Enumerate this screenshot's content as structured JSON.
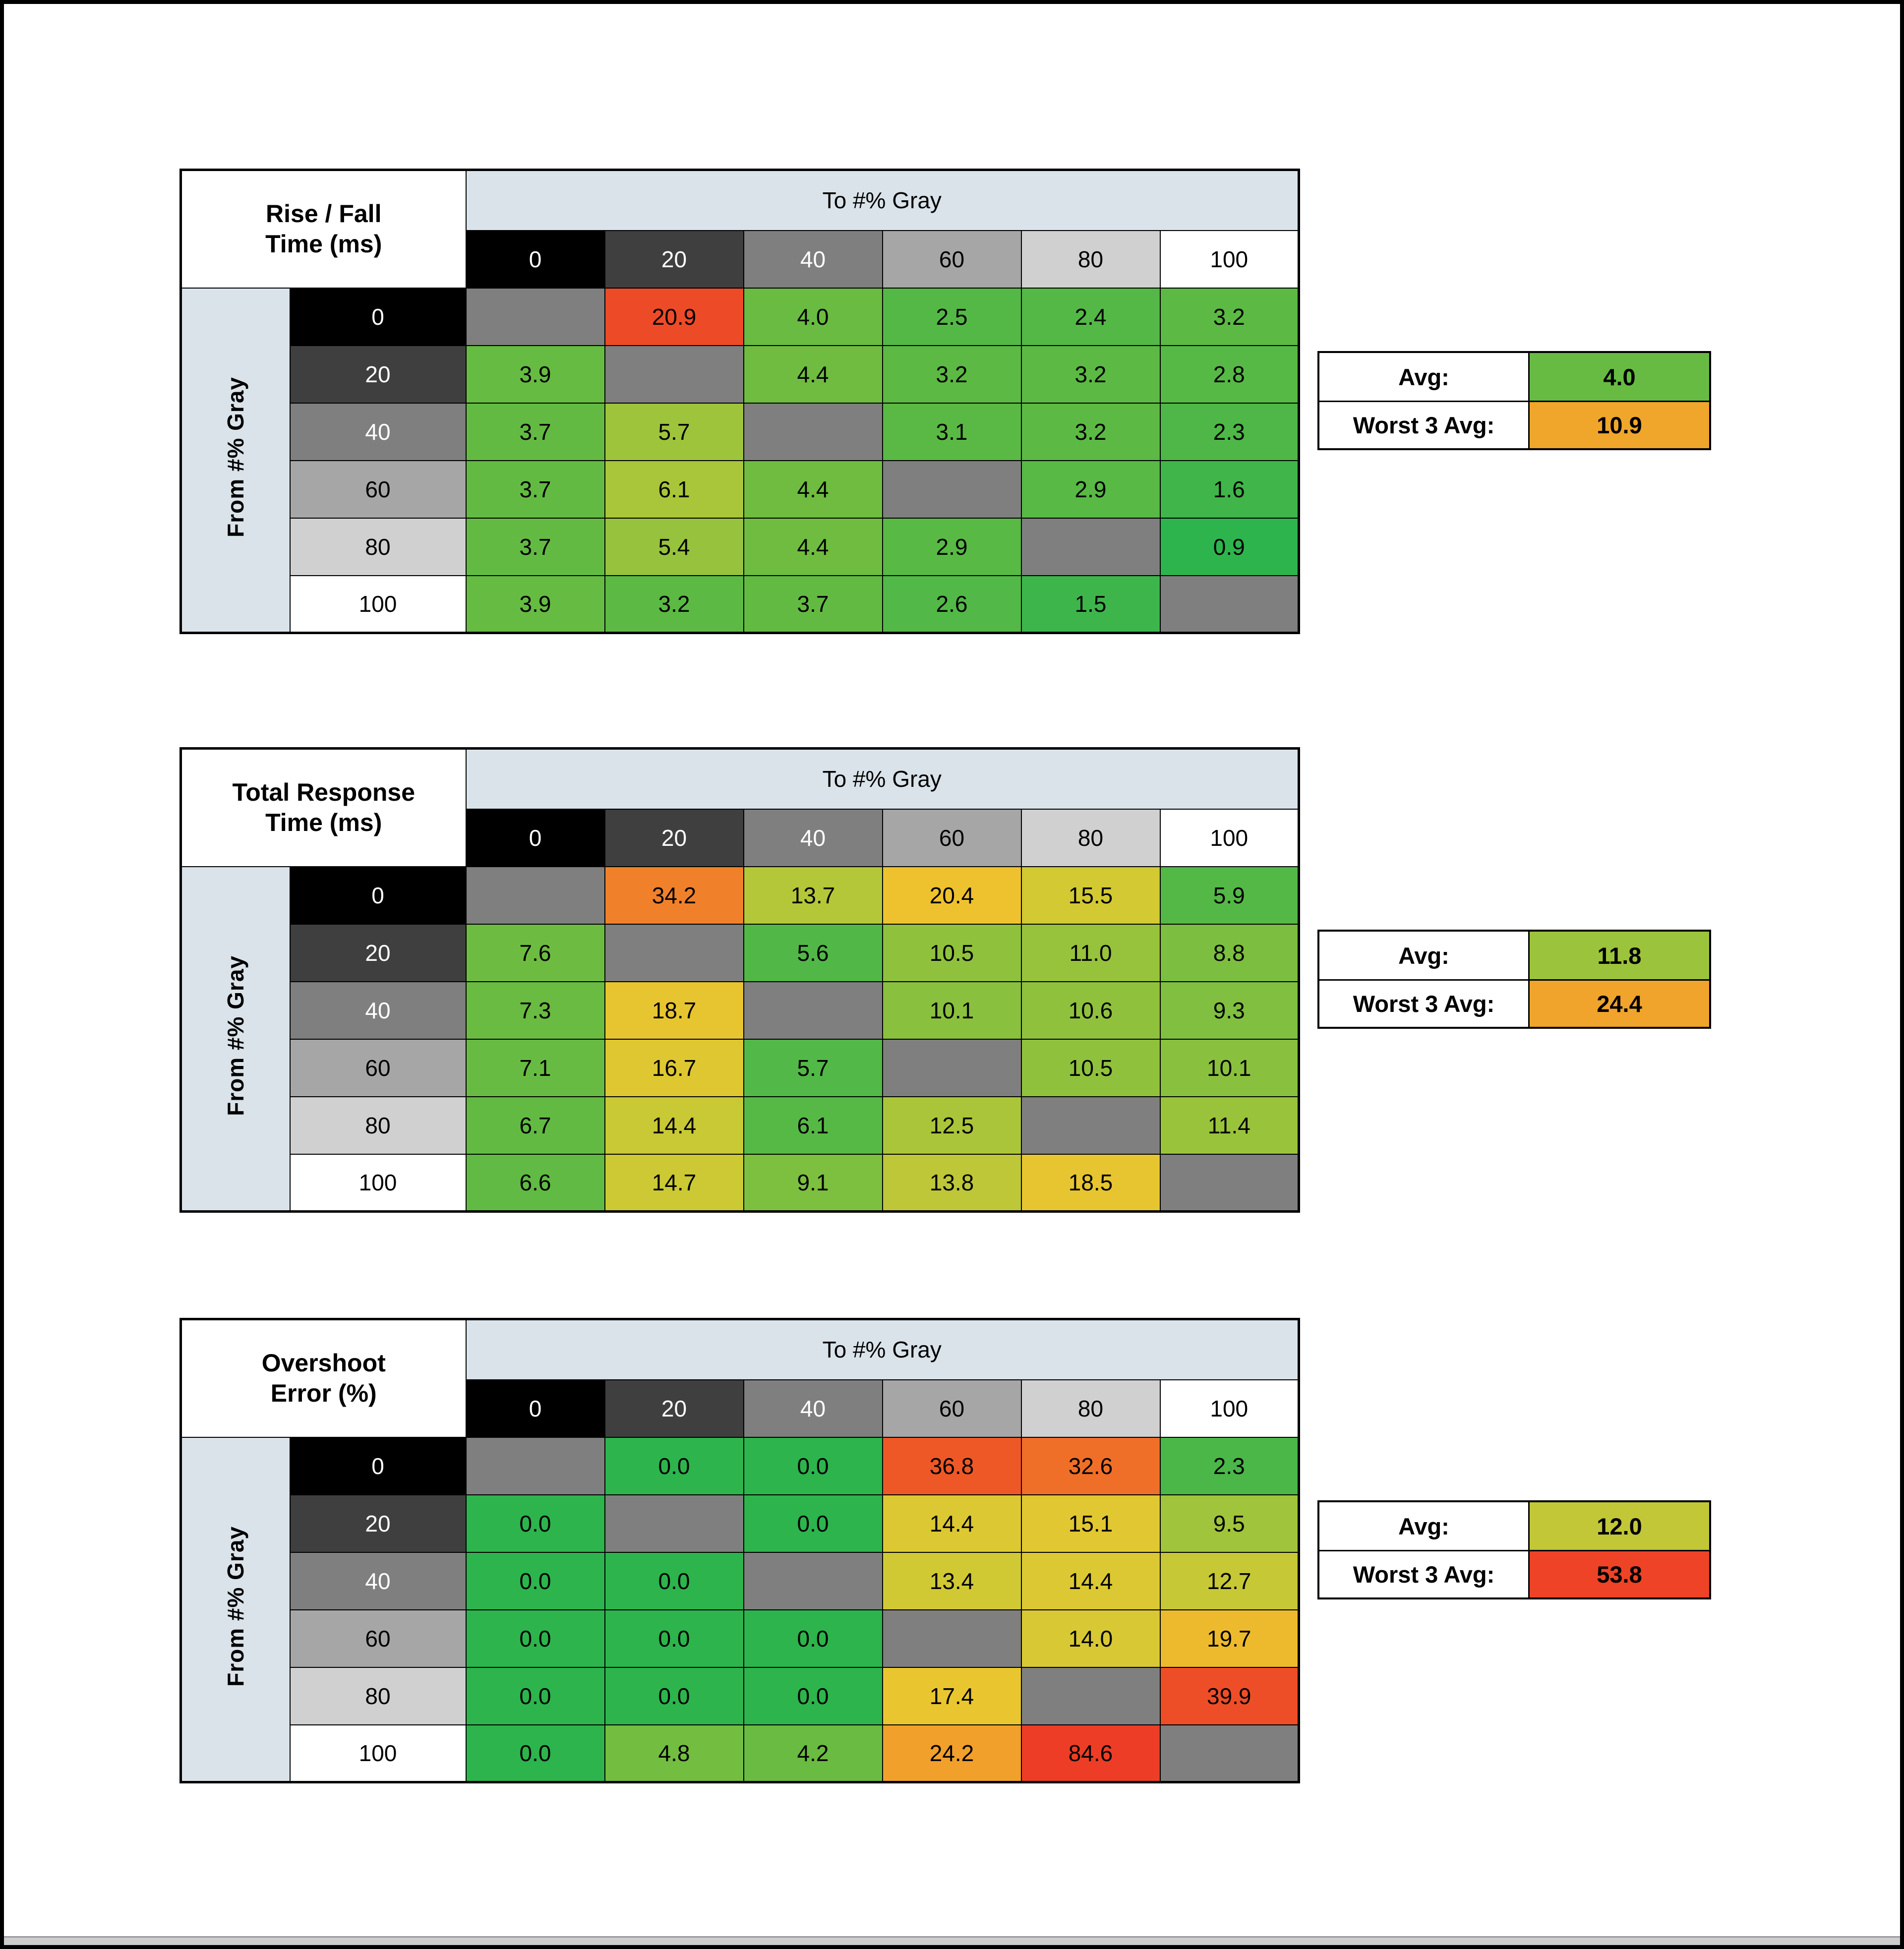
{
  "window": {
    "bg": "#ffffff",
    "frame_color": "#000000",
    "scrollbar_color": "#cdcdcd"
  },
  "style": {
    "band_bg": "#dae3ea",
    "diagonal_bg": "#7f7f7f"
  },
  "gray_levels": [
    {
      "label": "0",
      "bg": "#000000",
      "fg": "#ffffff"
    },
    {
      "label": "20",
      "bg": "#3f3f3f",
      "fg": "#ffffff"
    },
    {
      "label": "40",
      "bg": "#7f7f7f",
      "fg": "#ffffff"
    },
    {
      "label": "60",
      "bg": "#a6a6a6",
      "fg": "#000000"
    },
    {
      "label": "80",
      "bg": "#d0d0d0",
      "fg": "#000000"
    },
    {
      "label": "100",
      "bg": "#ffffff",
      "fg": "#000000"
    }
  ],
  "chart_data": [
    {
      "type": "heatmap",
      "title_line1": "Rise / Fall",
      "title_line2": "Time (ms)",
      "col_axis": "To #% Gray",
      "row_axis": "From #% Gray",
      "columns": [
        "0",
        "20",
        "40",
        "60",
        "80",
        "100"
      ],
      "rows": [
        "0",
        "20",
        "40",
        "60",
        "80",
        "100"
      ],
      "values": [
        [
          null,
          20.9,
          4.0,
          2.5,
          2.4,
          3.2
        ],
        [
          3.9,
          null,
          4.4,
          3.2,
          3.2,
          2.8
        ],
        [
          3.7,
          5.7,
          null,
          3.1,
          3.2,
          2.3
        ],
        [
          3.7,
          6.1,
          4.4,
          null,
          2.9,
          1.6
        ],
        [
          3.7,
          5.4,
          4.4,
          2.9,
          null,
          0.9
        ],
        [
          3.9,
          3.2,
          3.7,
          2.6,
          1.5,
          null
        ]
      ],
      "cell_colors": [
        [
          null,
          "#ed4b27",
          "#69bb41",
          "#54b846",
          "#53b846",
          "#5cb944"
        ],
        [
          "#66bb42",
          null,
          "#6fbc40",
          "#5cb944",
          "#5cb944",
          "#57b945"
        ],
        [
          "#63ba43",
          "#9ec43b",
          null,
          "#5ab944",
          "#5cb944",
          "#4eb747"
        ],
        [
          "#63ba43",
          "#a9c53a",
          "#6fbc40",
          null,
          "#58b945",
          "#40b54a"
        ],
        [
          "#63ba43",
          "#96c23d",
          "#6fbc40",
          "#58b945",
          null,
          "#2eb44d"
        ],
        [
          "#66bb42",
          "#5cb944",
          "#63ba43",
          "#52b847",
          "#3eb54b",
          null
        ]
      ],
      "summary": {
        "avg_label": "Avg:",
        "avg_value": "4.0",
        "avg_color": "#67bb42",
        "worst_label": "Worst 3 Avg:",
        "worst_value": "10.9",
        "worst_color": "#f0a62a"
      }
    },
    {
      "type": "heatmap",
      "title_line1": "Total Response",
      "title_line2": "Time (ms)",
      "col_axis": "To #% Gray",
      "row_axis": "From #% Gray",
      "columns": [
        "0",
        "20",
        "40",
        "60",
        "80",
        "100"
      ],
      "rows": [
        "0",
        "20",
        "40",
        "60",
        "80",
        "100"
      ],
      "values": [
        [
          null,
          34.2,
          13.7,
          20.4,
          15.5,
          5.9
        ],
        [
          7.6,
          null,
          5.6,
          10.5,
          11.0,
          8.8
        ],
        [
          7.3,
          18.7,
          null,
          10.1,
          10.6,
          9.3
        ],
        [
          7.1,
          16.7,
          5.7,
          null,
          10.5,
          10.1
        ],
        [
          6.7,
          14.4,
          6.1,
          12.5,
          null,
          11.4
        ],
        [
          6.6,
          14.7,
          9.1,
          13.8,
          18.5,
          null
        ]
      ],
      "cell_colors": [
        [
          null,
          "#f0812a",
          "#b4c739",
          "#eec22e",
          "#d2c933",
          "#54b846"
        ],
        [
          "#6dbc41",
          null,
          "#51b847",
          "#8fc13d",
          "#97c23c",
          "#7cbe3f"
        ],
        [
          "#6abb41",
          "#e7c530",
          null,
          "#89c03e",
          "#90c13d",
          "#80bf3f"
        ],
        [
          "#68bb42",
          "#dec731",
          "#52b847",
          null,
          "#8fc13d",
          "#89c03e"
        ],
        [
          "#62ba43",
          "#c9c835",
          "#57b945",
          "#abc53a",
          null,
          "#9ac33c"
        ],
        [
          "#61ba43",
          "#ccc934",
          "#7dbf3f",
          "#bec737",
          "#e6c530",
          null
        ]
      ],
      "summary": {
        "avg_label": "Avg:",
        "avg_value": "11.8",
        "avg_color": "#9cc33c",
        "worst_label": "Worst 3 Avg:",
        "worst_value": "24.4",
        "worst_color": "#f0a42b"
      }
    },
    {
      "type": "heatmap",
      "title_line1": "Overshoot",
      "title_line2": "Error (%)",
      "col_axis": "To #% Gray",
      "row_axis": "From #% Gray",
      "columns": [
        "0",
        "20",
        "40",
        "60",
        "80",
        "100"
      ],
      "rows": [
        "0",
        "20",
        "40",
        "60",
        "80",
        "100"
      ],
      "values": [
        [
          null,
          0.0,
          0.0,
          36.8,
          32.6,
          2.3
        ],
        [
          0.0,
          null,
          0.0,
          14.4,
          15.1,
          9.5
        ],
        [
          0.0,
          0.0,
          null,
          13.4,
          14.4,
          12.7
        ],
        [
          0.0,
          0.0,
          0.0,
          null,
          14.0,
          19.7
        ],
        [
          0.0,
          0.0,
          0.0,
          17.4,
          null,
          39.9
        ],
        [
          0.0,
          4.8,
          4.2,
          24.2,
          84.6,
          null
        ]
      ],
      "cell_colors": [
        [
          null,
          "#2db44d",
          "#2db44d",
          "#ee5827",
          "#ef6f29",
          "#4ab748"
        ],
        [
          "#2db44d",
          null,
          "#2db44d",
          "#dcc832",
          "#e1c731",
          "#a0c43b"
        ],
        [
          "#2db44d",
          "#2db44d",
          null,
          "#d0c934",
          "#dcc832",
          "#c6c836"
        ],
        [
          "#2db44d",
          "#2db44d",
          "#2db44d",
          null,
          "#d8c833",
          "#eeba2d"
        ],
        [
          "#2db44d",
          "#2db44d",
          "#2db44d",
          "#e9c62f",
          null,
          "#ee4e27"
        ],
        [
          "#2db44d",
          "#73bd40",
          "#6abb41",
          "#f0a02b",
          "#ed3d26",
          null
        ]
      ],
      "summary": {
        "avg_label": "Avg:",
        "avg_value": "12.0",
        "avg_color": "#c1c737",
        "worst_label": "Worst 3 Avg:",
        "worst_value": "53.8",
        "worst_color": "#ee4326"
      }
    }
  ]
}
